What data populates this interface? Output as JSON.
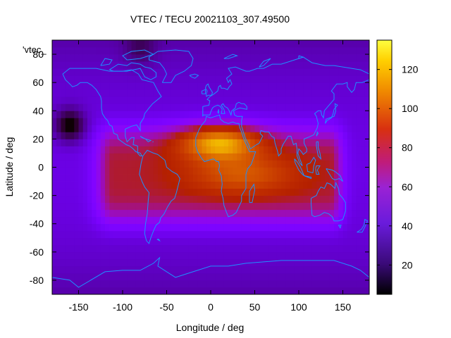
{
  "chart_data": {
    "type": "heatmap",
    "title": "VTEC / TECU 20021103_307.49500",
    "key_label": "'vtec_",
    "xlabel": "Longitude / deg",
    "ylabel": "Latitude / deg",
    "xlim": [
      -180,
      180
    ],
    "ylim": [
      -90,
      90
    ],
    "xticks": [
      -150,
      -100,
      -50,
      0,
      50,
      100,
      150
    ],
    "yticks": [
      -80,
      -60,
      -40,
      -20,
      0,
      20,
      40,
      60,
      80
    ],
    "colorbar": {
      "min": 5,
      "max": 135,
      "ticks": [
        20,
        40,
        60,
        80,
        100,
        120
      ]
    },
    "grid_resolution_deg": 5,
    "field_model": {
      "background_tecu": 28,
      "equatorial_anomaly": {
        "peak_tecu": 132,
        "crest_center_lon_deg": 10,
        "crest_center_lat_deg": 18,
        "eastern_lon_extent_deg": 135,
        "western_lon_extent_deg": -110,
        "latitude_range_deg": [
          -40,
          28
        ]
      },
      "low_spots": [
        {
          "name": "north-pacific-minimum",
          "lon_deg": -160,
          "lat_deg": 30,
          "tecu": 4
        },
        {
          "name": "north-polar-minimum",
          "lon_deg": -80,
          "lat_deg": 85,
          "tecu": 12
        }
      ]
    },
    "overlay": "coastlines"
  }
}
